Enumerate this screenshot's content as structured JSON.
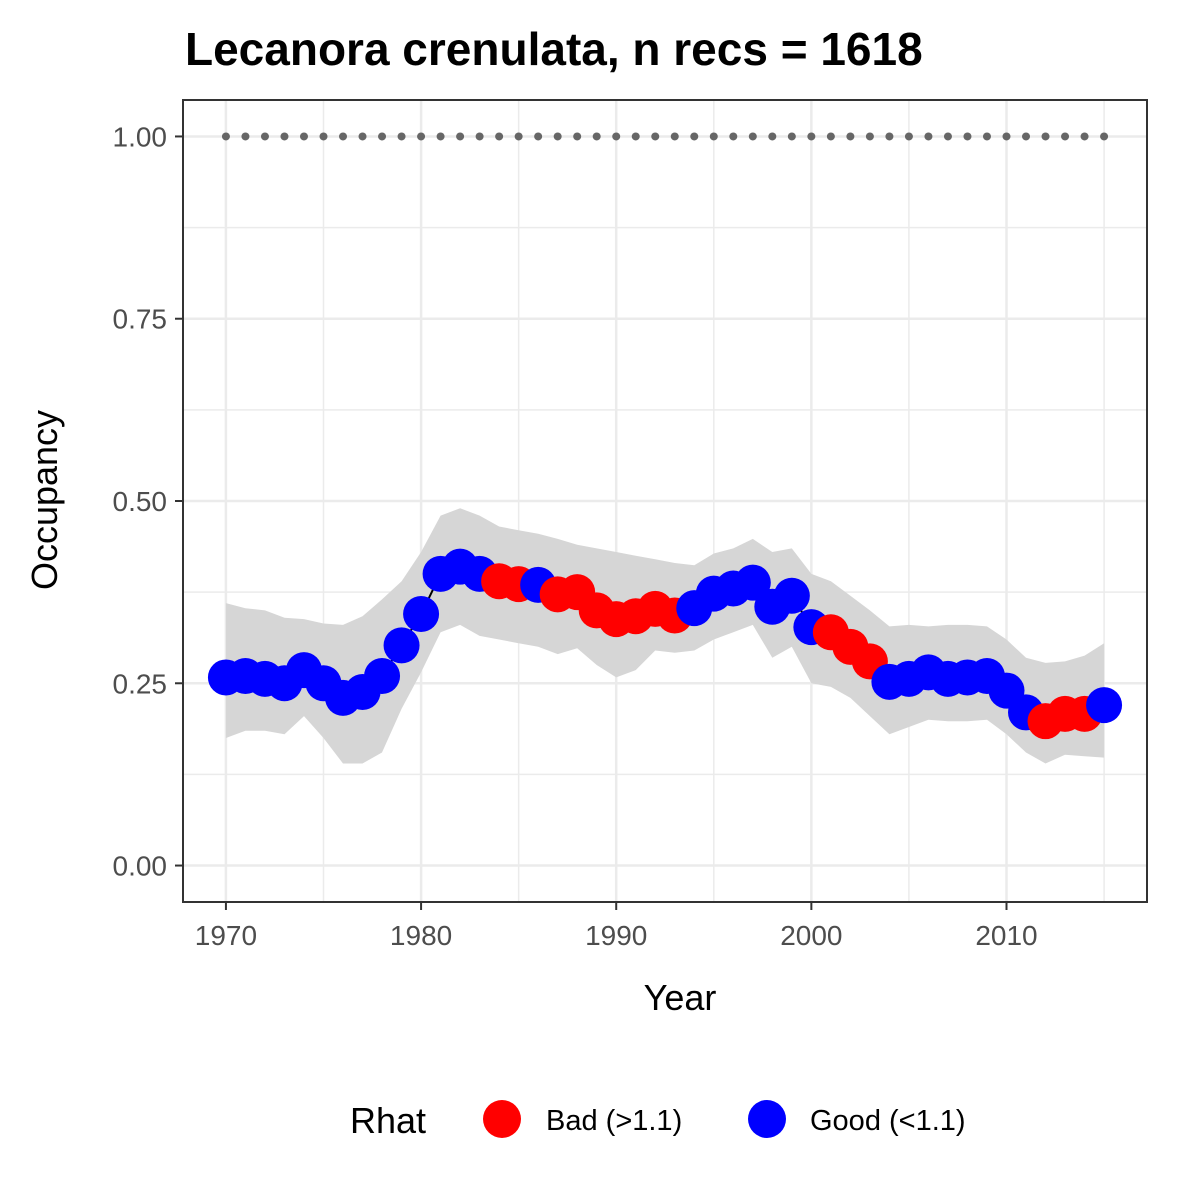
{
  "chart_data": {
    "type": "scatter",
    "title": "Lecanora crenulata, n recs = 1618",
    "xlabel": "Year",
    "ylabel": "Occupancy",
    "xlim": [
      1967.8,
      2017.2
    ],
    "ylim": [
      -0.05,
      1.05
    ],
    "x_ticks": [
      1970,
      1980,
      1990,
      2000,
      2010
    ],
    "x_tick_labels": [
      "1970",
      "1980",
      "1990",
      "2000",
      "2010"
    ],
    "y_ticks": [
      0.0,
      0.25,
      0.5,
      0.75,
      1.0
    ],
    "y_tick_labels": [
      "0.00",
      "0.25",
      "0.50",
      "0.75",
      "1.00"
    ],
    "x_minor_ticks": [
      1975,
      1985,
      1995,
      2005,
      2015
    ],
    "y_minor_ticks": [
      0.125,
      0.375,
      0.625,
      0.875
    ],
    "grid": true,
    "legend": {
      "title": "Rhat",
      "position": "bottom",
      "entries": [
        {
          "label": "Bad (>1.1)",
          "color": "#ff0000"
        },
        {
          "label": "Good (<1.1)",
          "color": "#0000ff"
        }
      ]
    },
    "colors": {
      "bad": "#ff0000",
      "good": "#0000ff",
      "ribbon": "#d6d6d6",
      "reference": "#666666",
      "line": "#000000"
    },
    "series": [
      {
        "name": "mean occupancy",
        "x": [
          1970,
          1971,
          1972,
          1973,
          1974,
          1975,
          1976,
          1977,
          1978,
          1979,
          1980,
          1981,
          1982,
          1983,
          1984,
          1985,
          1986,
          1987,
          1988,
          1989,
          1990,
          1991,
          1992,
          1993,
          1994,
          1995,
          1996,
          1997,
          1998,
          1999,
          2000,
          2001,
          2002,
          2003,
          2004,
          2005,
          2006,
          2007,
          2008,
          2009,
          2010,
          2011,
          2012,
          2013,
          2014,
          2015
        ],
        "y": [
          0.258,
          0.26,
          0.256,
          0.25,
          0.268,
          0.25,
          0.23,
          0.238,
          0.26,
          0.302,
          0.345,
          0.4,
          0.41,
          0.4,
          0.39,
          0.386,
          0.385,
          0.372,
          0.375,
          0.35,
          0.338,
          0.342,
          0.352,
          0.343,
          0.353,
          0.373,
          0.38,
          0.388,
          0.355,
          0.37,
          0.327,
          0.32,
          0.3,
          0.28,
          0.252,
          0.256,
          0.265,
          0.256,
          0.258,
          0.26,
          0.24,
          0.21,
          0.198,
          0.208,
          0.208,
          0.22
        ],
        "rhat": [
          "Good",
          "Good",
          "Good",
          "Good",
          "Good",
          "Good",
          "Good",
          "Good",
          "Good",
          "Good",
          "Good",
          "Good",
          "Good",
          "Good",
          "Bad",
          "Bad",
          "Good",
          "Bad",
          "Bad",
          "Bad",
          "Bad",
          "Bad",
          "Bad",
          "Bad",
          "Good",
          "Good",
          "Good",
          "Good",
          "Good",
          "Good",
          "Good",
          "Bad",
          "Bad",
          "Bad",
          "Good",
          "Good",
          "Good",
          "Good",
          "Good",
          "Good",
          "Good",
          "Good",
          "Bad",
          "Bad",
          "Bad",
          "Good"
        ]
      },
      {
        "name": "lower 95%",
        "x": [
          1970,
          1971,
          1972,
          1973,
          1974,
          1975,
          1976,
          1977,
          1978,
          1979,
          1980,
          1981,
          1982,
          1983,
          1984,
          1985,
          1986,
          1987,
          1988,
          1989,
          1990,
          1991,
          1992,
          1993,
          1994,
          1995,
          1996,
          1997,
          1998,
          1999,
          2000,
          2001,
          2002,
          2003,
          2004,
          2005,
          2006,
          2007,
          2008,
          2009,
          2010,
          2011,
          2012,
          2013,
          2014,
          2015
        ],
        "y": [
          0.175,
          0.185,
          0.185,
          0.18,
          0.205,
          0.175,
          0.14,
          0.14,
          0.155,
          0.215,
          0.265,
          0.32,
          0.33,
          0.315,
          0.31,
          0.305,
          0.3,
          0.29,
          0.298,
          0.275,
          0.258,
          0.268,
          0.295,
          0.292,
          0.295,
          0.31,
          0.32,
          0.33,
          0.285,
          0.3,
          0.25,
          0.245,
          0.23,
          0.205,
          0.18,
          0.19,
          0.2,
          0.198,
          0.198,
          0.2,
          0.18,
          0.155,
          0.14,
          0.152,
          0.15,
          0.148
        ]
      },
      {
        "name": "upper 95%",
        "x": [
          1970,
          1971,
          1972,
          1973,
          1974,
          1975,
          1976,
          1977,
          1978,
          1979,
          1980,
          1981,
          1982,
          1983,
          1984,
          1985,
          1986,
          1987,
          1988,
          1989,
          1990,
          1991,
          1992,
          1993,
          1994,
          1995,
          1996,
          1997,
          1998,
          1999,
          2000,
          2001,
          2002,
          2003,
          2004,
          2005,
          2006,
          2007,
          2008,
          2009,
          2010,
          2011,
          2012,
          2013,
          2014,
          2015
        ],
        "y": [
          0.36,
          0.353,
          0.35,
          0.34,
          0.338,
          0.332,
          0.33,
          0.342,
          0.365,
          0.39,
          0.43,
          0.48,
          0.49,
          0.48,
          0.465,
          0.46,
          0.455,
          0.448,
          0.44,
          0.435,
          0.43,
          0.425,
          0.42,
          0.415,
          0.412,
          0.428,
          0.435,
          0.448,
          0.43,
          0.435,
          0.4,
          0.39,
          0.37,
          0.35,
          0.328,
          0.33,
          0.328,
          0.33,
          0.33,
          0.328,
          0.31,
          0.285,
          0.278,
          0.28,
          0.288,
          0.305
        ]
      },
      {
        "name": "reference",
        "x": [
          1970,
          1971,
          1972,
          1973,
          1974,
          1975,
          1976,
          1977,
          1978,
          1979,
          1980,
          1981,
          1982,
          1983,
          1984,
          1985,
          1986,
          1987,
          1988,
          1989,
          1990,
          1991,
          1992,
          1993,
          1994,
          1995,
          1996,
          1997,
          1998,
          1999,
          2000,
          2001,
          2002,
          2003,
          2004,
          2005,
          2006,
          2007,
          2008,
          2009,
          2010,
          2011,
          2012,
          2013,
          2014,
          2015
        ],
        "y": [
          1,
          1,
          1,
          1,
          1,
          1,
          1,
          1,
          1,
          1,
          1,
          1,
          1,
          1,
          1,
          1,
          1,
          1,
          1,
          1,
          1,
          1,
          1,
          1,
          1,
          1,
          1,
          1,
          1,
          1,
          1,
          1,
          1,
          1,
          1,
          1,
          1,
          1,
          1,
          1,
          1,
          1,
          1,
          1,
          1,
          1
        ]
      }
    ]
  }
}
